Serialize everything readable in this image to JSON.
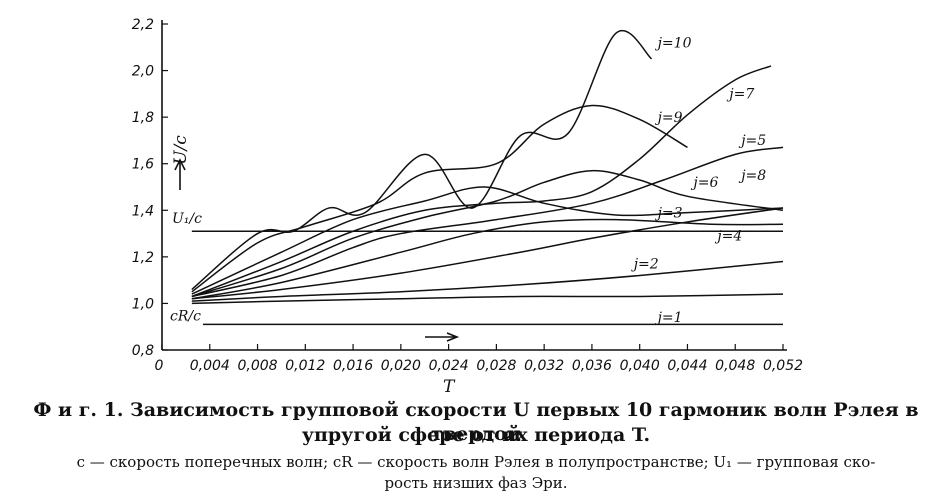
{
  "chart_data": {
    "type": "line",
    "xlabel": "T",
    "ylabel": "U/c",
    "xlim": [
      0,
      0.052
    ],
    "ylim": [
      0.8,
      2.2
    ],
    "x_ticks": [
      "0",
      "0,004",
      "0,008",
      "0,012",
      "0,016",
      "0,020",
      "0,024",
      "0,028",
      "0,032",
      "0,036",
      "0,040",
      "0,044",
      "0,048",
      "0,052"
    ],
    "y_ticks": [
      "0,8",
      "1,0",
      "1,2",
      "1,4",
      "1,6",
      "1,8",
      "2,0",
      "2,2"
    ],
    "reference_lines": [
      {
        "label": "U₁/c",
        "y": 1.31
      },
      {
        "label": "cR/c",
        "y": 0.91
      }
    ],
    "series": [
      {
        "name": "j=1",
        "x": [
          0.0025,
          0.01,
          0.02,
          0.03,
          0.04,
          0.052
        ],
        "y": [
          1.0,
          1.01,
          1.02,
          1.03,
          1.03,
          1.04
        ]
      },
      {
        "name": "j=2",
        "x": [
          0.0025,
          0.01,
          0.02,
          0.03,
          0.04,
          0.052
        ],
        "y": [
          1.01,
          1.03,
          1.05,
          1.08,
          1.12,
          1.18
        ]
      },
      {
        "name": "j=3",
        "x": [
          0.0025,
          0.01,
          0.02,
          0.03,
          0.036,
          0.044,
          0.052
        ],
        "y": [
          1.02,
          1.06,
          1.13,
          1.22,
          1.28,
          1.35,
          1.41
        ]
      },
      {
        "name": "j=4",
        "x": [
          0.0025,
          0.01,
          0.02,
          0.026,
          0.032,
          0.038,
          0.046,
          0.052
        ],
        "y": [
          1.02,
          1.09,
          1.22,
          1.3,
          1.35,
          1.36,
          1.34,
          1.34
        ]
      },
      {
        "name": "j=5",
        "x": [
          0.0025,
          0.01,
          0.016,
          0.02,
          0.028,
          0.036,
          0.042,
          0.048,
          0.052
        ],
        "y": [
          1.03,
          1.12,
          1.24,
          1.3,
          1.36,
          1.43,
          1.53,
          1.64,
          1.67
        ]
      },
      {
        "name": "j=6",
        "x": [
          0.0025,
          0.01,
          0.016,
          0.022,
          0.028,
          0.032,
          0.036,
          0.04,
          0.044,
          0.052
        ],
        "y": [
          1.03,
          1.15,
          1.28,
          1.37,
          1.44,
          1.52,
          1.57,
          1.53,
          1.46,
          1.4
        ]
      },
      {
        "name": "j=7",
        "x": [
          0.0025,
          0.01,
          0.016,
          0.022,
          0.028,
          0.032,
          0.036,
          0.04,
          0.044,
          0.048,
          0.051
        ],
        "y": [
          1.03,
          1.18,
          1.31,
          1.4,
          1.43,
          1.44,
          1.48,
          1.62,
          1.81,
          1.96,
          2.02
        ]
      },
      {
        "name": "j=8",
        "x": [
          0.0025,
          0.01,
          0.016,
          0.022,
          0.027,
          0.032,
          0.038,
          0.044,
          0.052
        ],
        "y": [
          1.04,
          1.22,
          1.36,
          1.44,
          1.5,
          1.43,
          1.38,
          1.39,
          1.41
        ]
      },
      {
        "name": "j=9",
        "x": [
          0.0025,
          0.008,
          0.012,
          0.018,
          0.022,
          0.028,
          0.032,
          0.036,
          0.04,
          0.044
        ],
        "y": [
          1.05,
          1.26,
          1.33,
          1.43,
          1.56,
          1.6,
          1.77,
          1.85,
          1.79,
          1.67
        ]
      },
      {
        "name": "j=10",
        "x": [
          0.0025,
          0.008,
          0.011,
          0.014,
          0.017,
          0.022,
          0.026,
          0.03,
          0.034,
          0.038,
          0.041
        ],
        "y": [
          1.06,
          1.3,
          1.31,
          1.41,
          1.39,
          1.64,
          1.41,
          1.72,
          1.73,
          2.16,
          2.05
        ]
      }
    ],
    "curve_label_j": "j"
  },
  "caption": {
    "line1": "Ф и г. 1. Зависимость групповой скорости U первых 10 гармоник волн Рэлея в твердой",
    "line2": "упругой сфере от их периода T.",
    "line3": "c — скорость поперечных волн; cR — скорость волн Рэлея в полупространстве; U₁ — групповая ско-",
    "line4": "рость низших фаз Эри."
  }
}
